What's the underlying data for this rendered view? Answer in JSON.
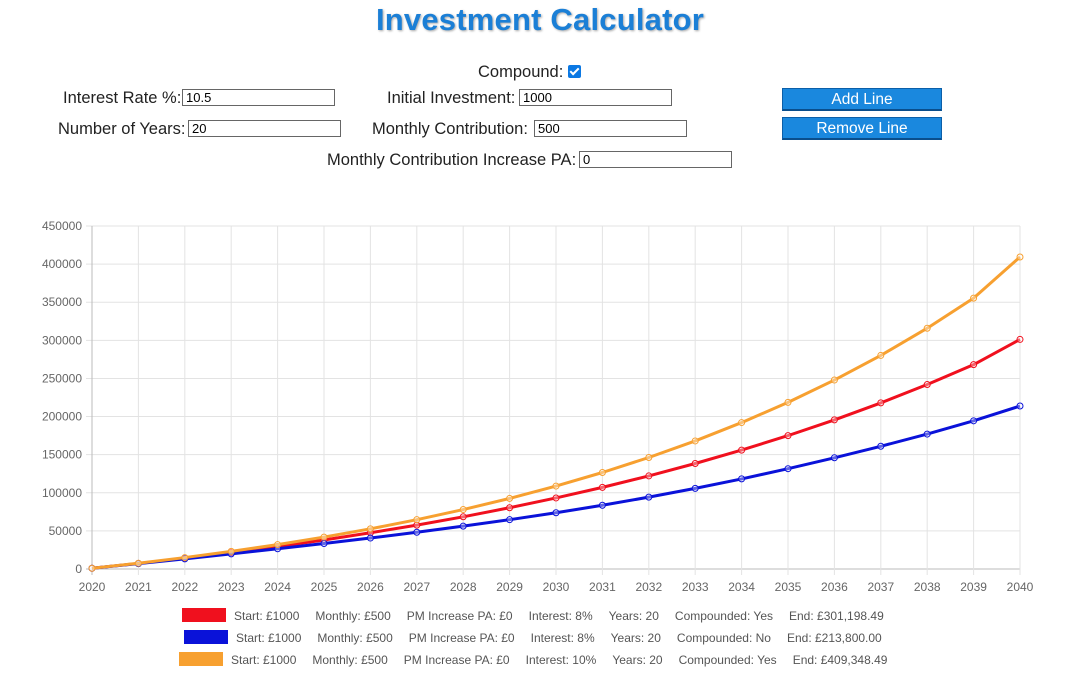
{
  "title": "Investment Calculator",
  "form": {
    "compound_label": "Compound:",
    "compound_checked": true,
    "interest_label": "Interest Rate %:",
    "interest_value": "10.5",
    "initial_label": "Initial Investment:",
    "initial_value": "1000",
    "years_label": "Number of Years:",
    "years_value": "20",
    "monthly_label": "Monthly Contribution:",
    "monthly_value": "500",
    "increase_label": "Monthly Contribution Increase PA:",
    "increase_value": "0",
    "add_label": "Add Line",
    "remove_label": "Remove Line"
  },
  "chart_data": {
    "type": "line",
    "x": [
      2020,
      2021,
      2022,
      2023,
      2024,
      2025,
      2026,
      2027,
      2028,
      2029,
      2030,
      2031,
      2032,
      2033,
      2034,
      2035,
      2036,
      2037,
      2038,
      2039,
      2040
    ],
    "ylim": [
      0,
      450000
    ],
    "yticks": [
      0,
      50000,
      100000,
      150000,
      200000,
      250000,
      300000,
      350000,
      400000,
      450000
    ],
    "grid": true,
    "series": [
      {
        "color": "#f0101e",
        "values": [
          1000,
          7300,
          14100,
          21500,
          29500,
          38100,
          47500,
          57600,
          68500,
          80400,
          93200,
          107100,
          122100,
          138400,
          156000,
          175000,
          195600,
          217900,
          242000,
          268100,
          301198
        ]
      },
      {
        "color": "#0a12d9",
        "values": [
          1000,
          7100,
          13300,
          19800,
          26500,
          33400,
          40600,
          48200,
          56200,
          64700,
          73800,
          83600,
          94300,
          105800,
          118200,
          131600,
          145900,
          161000,
          177000,
          194400,
          213800
        ]
      },
      {
        "color": "#f7a030",
        "values": [
          1000,
          7600,
          15000,
          23100,
          32000,
          41900,
          52700,
          64700,
          78000,
          92600,
          108800,
          126600,
          146300,
          168000,
          192100,
          218600,
          247900,
          280200,
          315900,
          355400,
          409348
        ]
      }
    ],
    "legend": [
      {
        "color": "#f0101e",
        "items": [
          "Start: £1000",
          "Monthly: £500",
          "PM Increase PA: £0",
          "Interest: 8%",
          "Years: 20",
          "Compounded: Yes",
          "End: £301,198.49"
        ]
      },
      {
        "color": "#0a12d9",
        "items": [
          "Start: £1000",
          "Monthly: £500",
          "PM Increase PA: £0",
          "Interest: 8%",
          "Years: 20",
          "Compounded: No",
          "End: £213,800.00"
        ]
      },
      {
        "color": "#f7a030",
        "items": [
          "Start: £1000",
          "Monthly: £500",
          "PM Increase PA: £0",
          "Interest: 10%",
          "Years: 20",
          "Compounded: Yes",
          "End: £409,348.49"
        ]
      }
    ]
  }
}
